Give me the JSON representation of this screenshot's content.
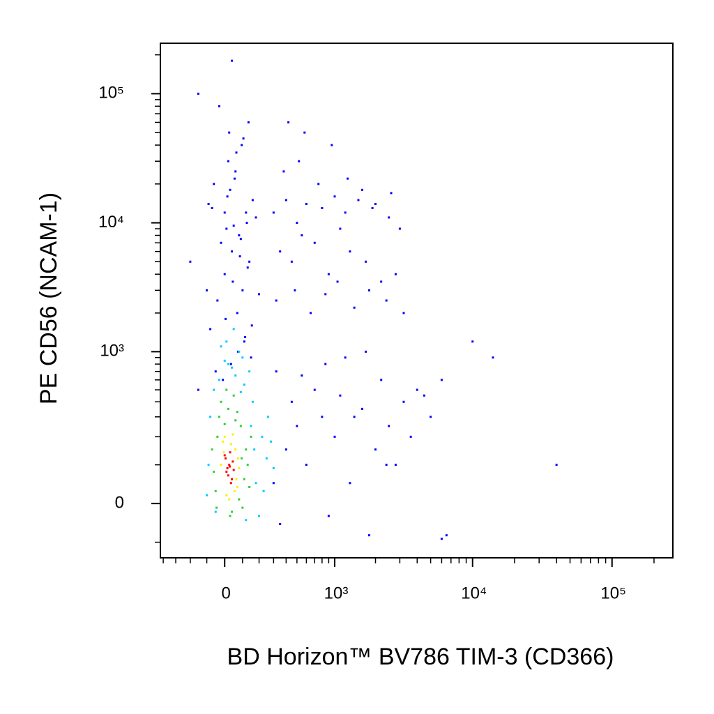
{
  "chart_data": {
    "type": "scatter",
    "xlabel": "BD Horizon™ BV786 TIM-3 (CD366)",
    "ylabel": "PE CD56 (NCAM-1)",
    "xscale": "biexponential",
    "yscale": "biexponential",
    "xlim": [
      -425,
      273000
    ],
    "ylim": [
      -151,
      246000
    ],
    "xticks": [
      0,
      {
        "value": 1000,
        "label": "10³"
      },
      {
        "value": 10000,
        "label": "10⁴"
      },
      {
        "value": 100000,
        "label": "10⁵"
      }
    ],
    "yticks": [
      0,
      {
        "value": 1000,
        "label": "10³"
      },
      {
        "value": 10000,
        "label": "10⁴"
      },
      {
        "value": 100000,
        "label": "10⁵"
      }
    ],
    "xminor_ticks": [
      -400,
      -300,
      -200,
      -100,
      100,
      200,
      300,
      400,
      500,
      600,
      700,
      800,
      900,
      2000,
      3000,
      4000,
      5000,
      6000,
      7000,
      8000,
      9000,
      20000,
      30000,
      40000,
      50000,
      60000,
      70000,
      80000,
      90000,
      200000
    ],
    "yminor_ticks": [
      -100,
      100,
      200,
      300,
      400,
      500,
      600,
      700,
      800,
      900,
      2000,
      3000,
      4000,
      5000,
      6000,
      7000,
      8000,
      9000,
      20000,
      30000,
      40000,
      50000,
      60000,
      70000,
      80000,
      90000,
      200000
    ],
    "series": [
      {
        "color": "#0000ff",
        "x": [
          -80,
          -40,
          0,
          40,
          80,
          120,
          160,
          -60,
          20,
          60,
          100,
          140,
          -20,
          10,
          180,
          -90,
          30,
          70,
          110,
          150,
          -50,
          5,
          45,
          85,
          125,
          -70,
          15,
          55,
          95,
          135,
          -30,
          25,
          65,
          105,
          200,
          -10,
          35,
          75,
          115,
          155,
          -100,
          0,
          50,
          90,
          130,
          300,
          400,
          500,
          600,
          800,
          1000,
          1200,
          1500,
          2000,
          2500,
          3000,
          350,
          450,
          550,
          700,
          900,
          1100,
          1300,
          1700,
          2200,
          2800,
          320,
          480,
          650,
          850,
          1050,
          1400,
          1800,
          2400,
          3200,
          380,
          520,
          750,
          950,
          1250,
          1600,
          420,
          580,
          1900,
          2600,
          300,
          400,
          500,
          600,
          800,
          1000,
          1300,
          1600,
          2000,
          2500,
          3200,
          4000,
          5000,
          350,
          450,
          700,
          900,
          1100,
          1400,
          1800,
          2200,
          2800,
          3600,
          6000,
          320,
          550,
          850,
          1200,
          1700,
          2400,
          10000,
          14000,
          40000,
          6000,
          4500,
          6500,
          -200,
          -150,
          40,
          -150
        ],
        "y": [
          1500,
          2500,
          4000,
          6000,
          8000,
          12000,
          15000,
          20000,
          30000,
          25000,
          3000,
          5000,
          7000,
          9000,
          11000,
          14000,
          18000,
          2000,
          1200,
          900,
          700,
          1800,
          3500,
          5500,
          10000,
          13000,
          16000,
          22000,
          40000,
          60000,
          80000,
          50000,
          35000,
          45000,
          2800,
          600,
          800,
          1000,
          1300,
          1600,
          3000,
          12000,
          9500,
          7500,
          4500,
          12000,
          15000,
          10000,
          14000,
          13000,
          16000,
          12000,
          15000,
          14000,
          11000,
          9000,
          6000,
          5000,
          8000,
          7000,
          4000,
          9000,
          6000,
          5000,
          3500,
          4000,
          2500,
          3000,
          2000,
          2800,
          3500,
          2200,
          3000,
          2500,
          2000,
          25000,
          30000,
          20000,
          40000,
          22000,
          18000,
          60000,
          50000,
          13000,
          17000,
          50,
          150,
          250,
          100,
          300,
          200,
          50,
          350,
          150,
          250,
          400,
          500,
          300,
          -50,
          400,
          500,
          -30,
          450,
          300,
          -80,
          600,
          100,
          200,
          -90,
          700,
          650,
          800,
          900,
          1000,
          100,
          1200,
          900,
          100,
          600,
          450,
          -80,
          5000,
          100000,
          180000,
          500
        ]
      },
      {
        "color": "#00ccff",
        "x": [
          -90,
          -80,
          180,
          220,
          250,
          -60,
          160,
          200,
          140,
          100,
          -30,
          20,
          60,
          300,
          260,
          -100,
          120,
          80,
          40,
          0,
          -50,
          170,
          230,
          90,
          10,
          50,
          -20,
          150,
          280,
          110
        ],
        "y": [
          100,
          300,
          50,
          200,
          120,
          500,
          400,
          -30,
          700,
          900,
          600,
          800,
          650,
          90,
          300,
          20,
          -40,
          1000,
          750,
          850,
          -20,
          150,
          30,
          480,
          1200,
          1500,
          1100,
          250,
          180,
          550
        ]
      },
      {
        "color": "#33cc33",
        "x": [
          -60,
          -40,
          90,
          110,
          120,
          -30,
          100,
          60,
          20,
          -50,
          130,
          80,
          40,
          0,
          150,
          -20,
          70,
          30,
          140,
          -70,
          50,
          10,
          95,
          -45
        ],
        "y": [
          80,
          200,
          250,
          60,
          150,
          300,
          -10,
          280,
          350,
          30,
          100,
          10,
          -20,
          260,
          200,
          400,
          330,
          -30,
          40,
          150,
          450,
          500,
          120,
          -10
        ]
      },
      {
        "color": "#ffee00",
        "x": [
          -20,
          60,
          70,
          -10,
          55,
          0,
          80,
          35,
          10,
          65,
          -5,
          45,
          25,
          75
        ],
        "y": [
          100,
          150,
          40,
          180,
          30,
          200,
          90,
          170,
          20,
          60,
          140,
          210,
          10,
          120
        ]
      },
      {
        "color": "#ff0000",
        "x": [
          10,
          25,
          40,
          5,
          30,
          15,
          45,
          20,
          35,
          0,
          50,
          28
        ],
        "y": [
          80,
          100,
          60,
          120,
          140,
          90,
          110,
          70,
          50,
          130,
          85,
          95
        ]
      }
    ]
  }
}
